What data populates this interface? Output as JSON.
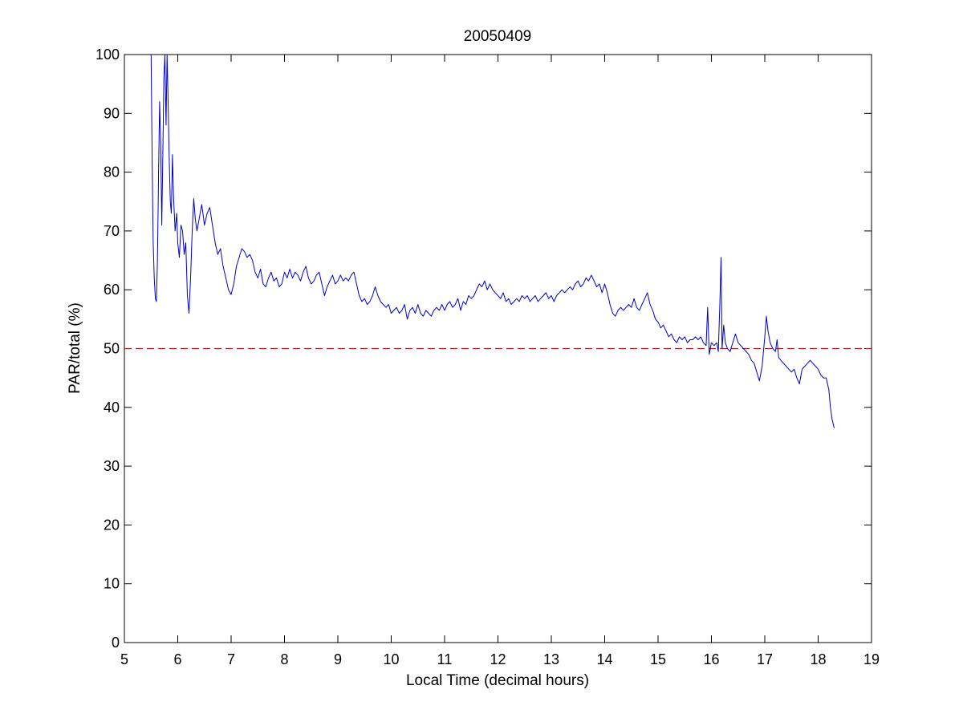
{
  "chart_data": {
    "type": "line",
    "title": "20050409",
    "xlabel": "Local Time (decimal hours)",
    "ylabel": "PAR/total (%)",
    "xlim": [
      5,
      19
    ],
    "ylim": [
      0,
      100
    ],
    "xticks": [
      "5",
      "6",
      "7",
      "8",
      "9",
      "10",
      "11",
      "12",
      "13",
      "14",
      "15",
      "16",
      "17",
      "18",
      "19"
    ],
    "yticks": [
      "0",
      "10",
      "20",
      "30",
      "40",
      "50",
      "60",
      "70",
      "80",
      "90",
      "100"
    ],
    "grid": false,
    "reference_line": {
      "y": 50,
      "style": "dashed",
      "color": "#b22222"
    },
    "series": [
      {
        "color": "#0000cc",
        "points": [
          [
            5.5,
            100
          ],
          [
            5.52,
            82
          ],
          [
            5.54,
            68
          ],
          [
            5.56,
            62
          ],
          [
            5.58,
            58.5
          ],
          [
            5.6,
            58
          ],
          [
            5.62,
            65
          ],
          [
            5.64,
            80
          ],
          [
            5.66,
            92
          ],
          [
            5.68,
            85
          ],
          [
            5.7,
            71
          ],
          [
            5.72,
            83
          ],
          [
            5.74,
            96
          ],
          [
            5.76,
            100
          ],
          [
            5.78,
            88
          ],
          [
            5.8,
            100
          ],
          [
            5.82,
            92
          ],
          [
            5.84,
            82
          ],
          [
            5.86,
            75
          ],
          [
            5.88,
            73
          ],
          [
            5.9,
            83
          ],
          [
            5.92,
            76
          ],
          [
            5.95,
            70
          ],
          [
            5.98,
            73
          ],
          [
            6.0,
            68
          ],
          [
            6.03,
            65.5
          ],
          [
            6.06,
            71
          ],
          [
            6.09,
            70
          ],
          [
            6.12,
            66
          ],
          [
            6.15,
            68
          ],
          [
            6.18,
            59
          ],
          [
            6.21,
            56
          ],
          [
            6.24,
            62
          ],
          [
            6.27,
            70
          ],
          [
            6.3,
            75.5
          ],
          [
            6.33,
            72
          ],
          [
            6.36,
            70
          ],
          [
            6.4,
            72
          ],
          [
            6.45,
            74.5
          ],
          [
            6.5,
            71
          ],
          [
            6.55,
            73
          ],
          [
            6.6,
            74
          ],
          [
            6.65,
            71
          ],
          [
            6.7,
            68
          ],
          [
            6.75,
            66
          ],
          [
            6.8,
            67
          ],
          [
            6.85,
            64
          ],
          [
            6.9,
            62
          ],
          [
            6.95,
            60
          ],
          [
            7.0,
            59.2
          ],
          [
            7.05,
            61
          ],
          [
            7.1,
            64
          ],
          [
            7.15,
            65.5
          ],
          [
            7.2,
            67
          ],
          [
            7.25,
            66.5
          ],
          [
            7.3,
            65.5
          ],
          [
            7.35,
            66
          ],
          [
            7.4,
            65
          ],
          [
            7.45,
            63
          ],
          [
            7.5,
            62
          ],
          [
            7.55,
            63.5
          ],
          [
            7.6,
            61
          ],
          [
            7.65,
            60.5
          ],
          [
            7.7,
            62
          ],
          [
            7.75,
            63
          ],
          [
            7.8,
            61.5
          ],
          [
            7.85,
            62
          ],
          [
            7.9,
            60.5
          ],
          [
            7.95,
            61
          ],
          [
            8.0,
            63
          ],
          [
            8.05,
            62
          ],
          [
            8.1,
            63.5
          ],
          [
            8.15,
            62
          ],
          [
            8.2,
            63
          ],
          [
            8.25,
            62.5
          ],
          [
            8.3,
            61.5
          ],
          [
            8.35,
            63
          ],
          [
            8.4,
            64
          ],
          [
            8.45,
            62
          ],
          [
            8.5,
            61
          ],
          [
            8.55,
            61.5
          ],
          [
            8.6,
            62.5
          ],
          [
            8.65,
            63
          ],
          [
            8.7,
            61
          ],
          [
            8.75,
            59
          ],
          [
            8.8,
            60.5
          ],
          [
            8.85,
            61.5
          ],
          [
            8.9,
            62.5
          ],
          [
            8.95,
            61
          ],
          [
            9.0,
            61.5
          ],
          [
            9.05,
            62.5
          ],
          [
            9.1,
            61.5
          ],
          [
            9.15,
            62
          ],
          [
            9.2,
            61.5
          ],
          [
            9.25,
            62.5
          ],
          [
            9.3,
            63
          ],
          [
            9.35,
            61
          ],
          [
            9.4,
            59
          ],
          [
            9.45,
            58
          ],
          [
            9.5,
            58.5
          ],
          [
            9.55,
            57.5
          ],
          [
            9.6,
            58
          ],
          [
            9.65,
            59
          ],
          [
            9.7,
            60.5
          ],
          [
            9.75,
            59
          ],
          [
            9.8,
            58
          ],
          [
            9.85,
            57.5
          ],
          [
            9.9,
            57
          ],
          [
            9.95,
            57.5
          ],
          [
            10.0,
            56
          ],
          [
            10.05,
            56.5
          ],
          [
            10.1,
            57
          ],
          [
            10.15,
            56
          ],
          [
            10.2,
            56.5
          ],
          [
            10.25,
            57.5
          ],
          [
            10.3,
            55
          ],
          [
            10.35,
            56.5
          ],
          [
            10.4,
            57
          ],
          [
            10.45,
            56
          ],
          [
            10.5,
            57.5
          ],
          [
            10.55,
            56
          ],
          [
            10.6,
            55.5
          ],
          [
            10.65,
            56.5
          ],
          [
            10.7,
            56
          ],
          [
            10.75,
            55.5
          ],
          [
            10.8,
            56.5
          ],
          [
            10.85,
            57
          ],
          [
            10.9,
            56.5
          ],
          [
            10.95,
            57.5
          ],
          [
            11.0,
            56.5
          ],
          [
            11.05,
            57.5
          ],
          [
            11.1,
            58
          ],
          [
            11.15,
            57
          ],
          [
            11.2,
            57.5
          ],
          [
            11.25,
            58.5
          ],
          [
            11.3,
            56.5
          ],
          [
            11.35,
            58
          ],
          [
            11.4,
            57.5
          ],
          [
            11.45,
            59
          ],
          [
            11.5,
            58.5
          ],
          [
            11.55,
            59
          ],
          [
            11.6,
            60
          ],
          [
            11.65,
            61
          ],
          [
            11.7,
            60.5
          ],
          [
            11.75,
            61.5
          ],
          [
            11.8,
            60
          ],
          [
            11.85,
            61
          ],
          [
            11.9,
            60
          ],
          [
            11.95,
            59.5
          ],
          [
            12.0,
            59
          ],
          [
            12.05,
            58.5
          ],
          [
            12.1,
            59.5
          ],
          [
            12.15,
            58
          ],
          [
            12.2,
            58.5
          ],
          [
            12.25,
            57.5
          ],
          [
            12.3,
            58
          ],
          [
            12.35,
            58.5
          ],
          [
            12.4,
            58
          ],
          [
            12.45,
            59
          ],
          [
            12.5,
            58.5
          ],
          [
            12.55,
            59
          ],
          [
            12.6,
            58
          ],
          [
            12.65,
            58.5
          ],
          [
            12.7,
            59
          ],
          [
            12.75,
            58
          ],
          [
            12.8,
            58.5
          ],
          [
            12.85,
            59
          ],
          [
            12.9,
            59.5
          ],
          [
            12.95,
            58.5
          ],
          [
            13.0,
            59
          ],
          [
            13.05,
            58
          ],
          [
            13.1,
            59
          ],
          [
            13.15,
            59.5
          ],
          [
            13.2,
            60
          ],
          [
            13.25,
            59.5
          ],
          [
            13.3,
            60
          ],
          [
            13.35,
            60.5
          ],
          [
            13.4,
            60
          ],
          [
            13.45,
            61
          ],
          [
            13.5,
            61.5
          ],
          [
            13.55,
            60.5
          ],
          [
            13.6,
            61
          ],
          [
            13.65,
            62
          ],
          [
            13.7,
            61.5
          ],
          [
            13.75,
            62.5
          ],
          [
            13.8,
            61.5
          ],
          [
            13.85,
            60.5
          ],
          [
            13.9,
            61
          ],
          [
            13.95,
            59.5
          ],
          [
            14.0,
            61
          ],
          [
            14.05,
            59.5
          ],
          [
            14.1,
            57.5
          ],
          [
            14.15,
            56
          ],
          [
            14.2,
            55.5
          ],
          [
            14.25,
            56.5
          ],
          [
            14.3,
            57
          ],
          [
            14.35,
            56.5
          ],
          [
            14.4,
            57
          ],
          [
            14.45,
            57.5
          ],
          [
            14.5,
            57
          ],
          [
            14.55,
            58.5
          ],
          [
            14.6,
            57
          ],
          [
            14.65,
            56.5
          ],
          [
            14.7,
            57.5
          ],
          [
            14.75,
            58.5
          ],
          [
            14.8,
            59.5
          ],
          [
            14.85,
            57.5
          ],
          [
            14.9,
            56.5
          ],
          [
            14.95,
            55
          ],
          [
            15.0,
            54.5
          ],
          [
            15.05,
            53.5
          ],
          [
            15.1,
            54
          ],
          [
            15.15,
            53
          ],
          [
            15.2,
            52
          ],
          [
            15.25,
            52.5
          ],
          [
            15.3,
            51.5
          ],
          [
            15.35,
            51
          ],
          [
            15.4,
            52
          ],
          [
            15.45,
            51.5
          ],
          [
            15.5,
            52
          ],
          [
            15.55,
            51
          ],
          [
            15.6,
            51.5
          ],
          [
            15.65,
            51.5
          ],
          [
            15.7,
            52
          ],
          [
            15.75,
            51.5
          ],
          [
            15.8,
            52
          ],
          [
            15.85,
            51
          ],
          [
            15.9,
            50.5
          ],
          [
            15.93,
            57
          ],
          [
            15.96,
            49
          ],
          [
            16.0,
            51
          ],
          [
            16.05,
            50.5
          ],
          [
            16.1,
            51
          ],
          [
            16.13,
            49.5
          ],
          [
            16.16,
            58
          ],
          [
            16.18,
            65.5
          ],
          [
            16.2,
            50
          ],
          [
            16.23,
            54
          ],
          [
            16.26,
            51
          ],
          [
            16.3,
            50
          ],
          [
            16.35,
            49.5
          ],
          [
            16.4,
            51
          ],
          [
            16.45,
            52.5
          ],
          [
            16.5,
            51
          ],
          [
            16.55,
            50.5
          ],
          [
            16.6,
            50
          ],
          [
            16.65,
            49.5
          ],
          [
            16.7,
            49
          ],
          [
            16.75,
            48
          ],
          [
            16.8,
            47.5
          ],
          [
            16.85,
            46
          ],
          [
            16.9,
            44.5
          ],
          [
            16.95,
            47
          ],
          [
            17.0,
            52
          ],
          [
            17.03,
            55.5
          ],
          [
            17.06,
            53
          ],
          [
            17.1,
            51
          ],
          [
            17.15,
            50
          ],
          [
            17.2,
            49.5
          ],
          [
            17.23,
            51.5
          ],
          [
            17.26,
            48.5
          ],
          [
            17.3,
            48
          ],
          [
            17.35,
            47.5
          ],
          [
            17.4,
            47
          ],
          [
            17.45,
            46.5
          ],
          [
            17.5,
            46
          ],
          [
            17.55,
            46.5
          ],
          [
            17.6,
            45
          ],
          [
            17.65,
            44
          ],
          [
            17.7,
            46.5
          ],
          [
            17.75,
            47
          ],
          [
            17.8,
            47.5
          ],
          [
            17.85,
            48
          ],
          [
            17.9,
            47.5
          ],
          [
            17.95,
            47
          ],
          [
            18.0,
            46.5
          ],
          [
            18.05,
            45.5
          ],
          [
            18.1,
            45
          ],
          [
            18.15,
            45
          ],
          [
            18.2,
            43
          ],
          [
            18.23,
            40
          ],
          [
            18.26,
            38
          ],
          [
            18.3,
            36.5
          ]
        ]
      }
    ]
  }
}
